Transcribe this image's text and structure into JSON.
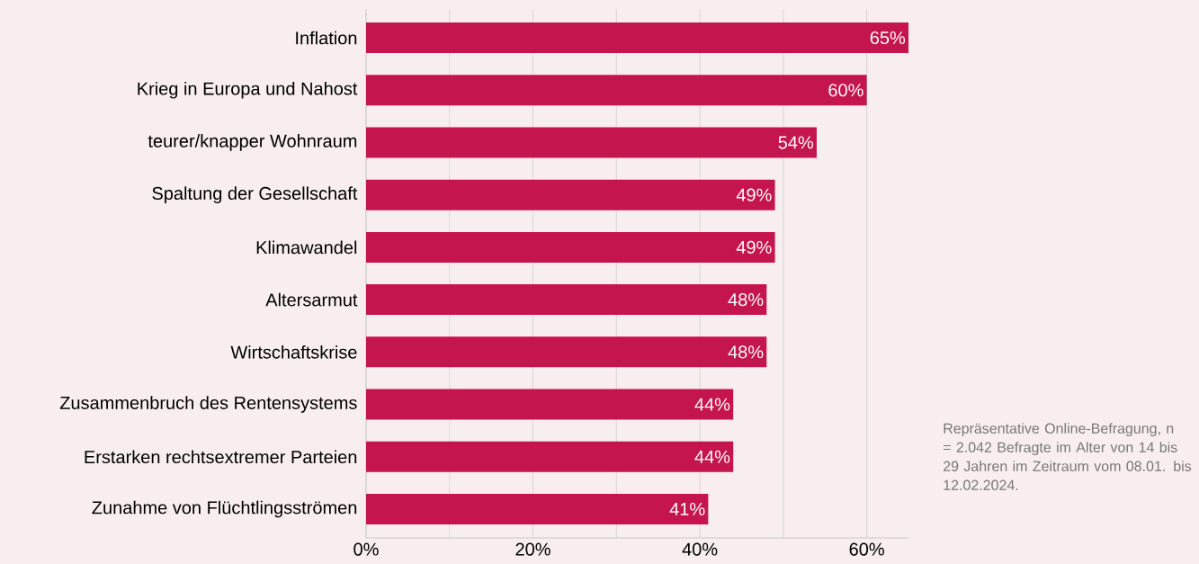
{
  "chart_data": {
    "type": "bar",
    "orientation": "horizontal",
    "categories": [
      "Inflation",
      "Krieg in Europa und Nahost",
      "teurer/knapper Wohnraum",
      "Spaltung der Gesellschaft",
      "Klimawandel",
      "Altersarmut",
      "Wirtschaftskrise",
      "Zusammenbruch des Rentensystems",
      "Erstarken rechtsextremer Parteien",
      "Zunahme von Flüchtlingsströmen"
    ],
    "values": [
      65,
      60,
      54,
      49,
      49,
      48,
      48,
      44,
      44,
      41
    ],
    "value_labels": [
      "65%",
      "60%",
      "54%",
      "49%",
      "49%",
      "48%",
      "48%",
      "44%",
      "44%",
      "41%"
    ],
    "color": "#c5154f",
    "xlim": [
      0,
      65
    ],
    "xticks": [
      {
        "value": 0,
        "label": "0%"
      },
      {
        "value": 10,
        "label": null
      },
      {
        "value": 20,
        "label": "20%"
      },
      {
        "value": 30,
        "label": null
      },
      {
        "value": 40,
        "label": "40%"
      },
      {
        "value": 50,
        "label": null
      },
      {
        "value": 60,
        "label": "60%"
      }
    ],
    "grid": "x",
    "annotations": [
      "Repräsentative Online-Befragung, n = 2.042 Befragte im Alter von 14 bis 29 Jahren im Zeitraum vom 08.01. bis 12.02.2024."
    ]
  }
}
